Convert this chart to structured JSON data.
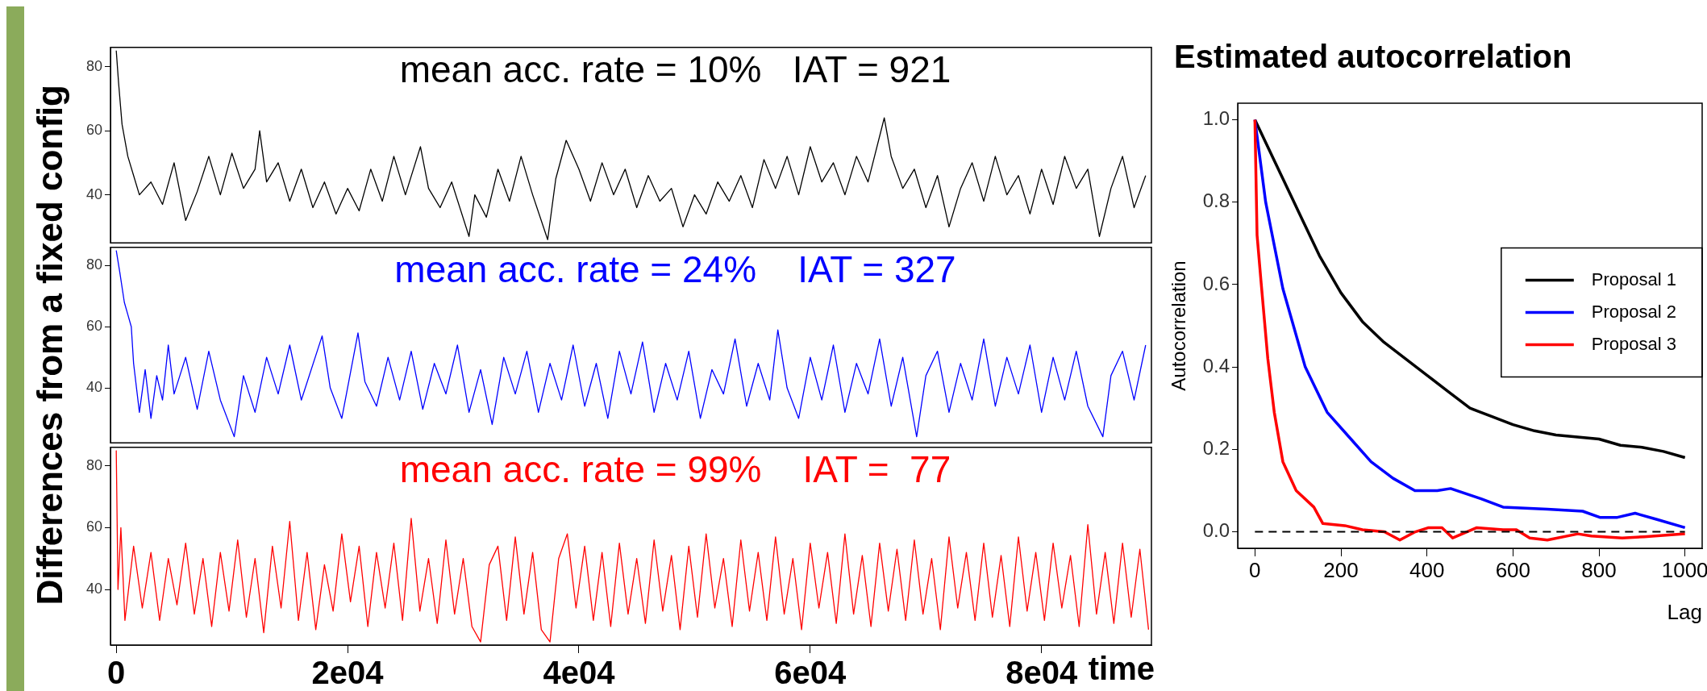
{
  "chart_data": [
    {
      "type": "line",
      "annotations": [
        "mean acc. rate = 10%   IAT = 921"
      ],
      "xlim": [
        -500,
        89500
      ],
      "ylim": [
        25,
        86
      ],
      "yticks": [
        40,
        60,
        80
      ],
      "tick_labels": "y",
      "grid": false,
      "marker": "none",
      "series": [
        {
          "color": "#000000",
          "x": [
            0,
            200,
            500,
            1000,
            1500,
            2000,
            3000,
            4000,
            5000,
            6000,
            7000,
            8000,
            9000,
            10000,
            11000,
            12000,
            12400,
            13000,
            14000,
            15000,
            16000,
            17000,
            18000,
            19000,
            20000,
            21000,
            22000,
            23000,
            24000,
            25000,
            26300,
            27000,
            28000,
            29000,
            30500,
            31000,
            32000,
            33000,
            34000,
            35000,
            36000,
            37300,
            38000,
            38900,
            40000,
            41000,
            42000,
            43000,
            44000,
            45000,
            46000,
            47000,
            48000,
            49000,
            50000,
            51000,
            52000,
            53000,
            54000,
            55000,
            56000,
            57000,
            58000,
            59000,
            60000,
            61000,
            62000,
            63000,
            64000,
            65000,
            66400,
            67000,
            68000,
            69000,
            70000,
            71000,
            72000,
            73000,
            74000,
            75000,
            76000,
            77000,
            78000,
            79000,
            80000,
            81000,
            82000,
            83000,
            84000,
            85000,
            86000,
            87000,
            88000,
            89000
          ],
          "values": [
            85,
            75,
            62,
            52,
            46,
            40,
            44,
            37,
            50,
            32,
            41,
            52,
            40,
            53,
            42,
            48,
            60,
            44,
            50,
            38,
            48,
            36,
            44,
            34,
            42,
            35,
            48,
            38,
            52,
            40,
            55,
            42,
            36,
            44,
            27,
            40,
            33,
            48,
            38,
            52,
            40,
            26,
            45,
            57,
            48,
            38,
            50,
            40,
            48,
            36,
            46,
            38,
            42,
            30,
            40,
            34,
            44,
            38,
            46,
            36,
            51,
            42,
            52,
            40,
            55,
            44,
            50,
            40,
            52,
            44,
            64,
            52,
            42,
            48,
            36,
            46,
            30,
            42,
            50,
            38,
            52,
            40,
            46,
            34,
            48,
            37,
            52,
            42,
            48,
            27,
            42,
            52,
            36,
            46
          ]
        }
      ]
    },
    {
      "type": "line",
      "ylabel": "Differences from a fixed config",
      "annotations": [
        "mean acc. rate = 24%    IAT = 327"
      ],
      "xlim": [
        -500,
        89500
      ],
      "ylim": [
        22,
        86
      ],
      "yticks": [
        40,
        60,
        80
      ],
      "tick_labels": "y",
      "grid": false,
      "marker": "none",
      "series": [
        {
          "color": "#0000ff",
          "x": [
            0,
            300,
            700,
            1000,
            1300,
            1500,
            2000,
            2500,
            3000,
            3500,
            4000,
            4500,
            5000,
            6000,
            7000,
            8000,
            9000,
            10200,
            11000,
            12000,
            13000,
            14000,
            15000,
            16000,
            17800,
            18500,
            19500,
            20900,
            21500,
            22500,
            23500,
            24500,
            25500,
            26500,
            27500,
            28500,
            29500,
            30500,
            31500,
            32500,
            33500,
            34500,
            35500,
            36500,
            37500,
            38500,
            39500,
            40500,
            41500,
            42500,
            43500,
            44500,
            45500,
            46500,
            47500,
            48500,
            49500,
            50500,
            51500,
            52500,
            53500,
            54500,
            55500,
            56500,
            57200,
            58000,
            59000,
            60000,
            61000,
            62000,
            63000,
            64000,
            65000,
            66000,
            67000,
            68000,
            69200,
            70000,
            71000,
            72000,
            73000,
            74000,
            75000,
            76000,
            77000,
            78000,
            79000,
            80000,
            81000,
            82000,
            83000,
            84000,
            85300,
            86000,
            87000,
            88000,
            89000
          ],
          "values": [
            85,
            78,
            68,
            64,
            60,
            48,
            32,
            46,
            30,
            44,
            36,
            54,
            38,
            50,
            33,
            52,
            36,
            24,
            44,
            32,
            50,
            38,
            54,
            36,
            57,
            40,
            30,
            58,
            42,
            34,
            50,
            36,
            52,
            33,
            48,
            38,
            54,
            32,
            46,
            28,
            50,
            38,
            52,
            32,
            48,
            36,
            54,
            34,
            48,
            30,
            52,
            38,
            55,
            32,
            48,
            36,
            52,
            30,
            46,
            38,
            56,
            34,
            48,
            36,
            59,
            40,
            30,
            50,
            36,
            54,
            32,
            48,
            38,
            56,
            34,
            50,
            24,
            44,
            52,
            32,
            48,
            36,
            56,
            34,
            50,
            38,
            54,
            32,
            50,
            36,
            52,
            34,
            24,
            44,
            52,
            36,
            54
          ]
        }
      ]
    },
    {
      "type": "line",
      "xlabel": "time",
      "annotations": [
        "mean acc. rate = 99%    IAT =  77"
      ],
      "xlim": [
        -500,
        89500
      ],
      "ylim": [
        22,
        86
      ],
      "xticks": [
        0,
        {
          "value": 20000,
          "label": "2e04"
        },
        {
          "value": 40000,
          "label": "4e04"
        },
        {
          "value": 60000,
          "label": "6e04"
        },
        {
          "value": 80000,
          "label": "8e04"
        }
      ],
      "yticks": [
        40,
        60,
        80
      ],
      "grid": false,
      "marker": "none",
      "series": [
        {
          "color": "#ff0000",
          "x": [
            0,
            150,
            400,
            750,
            1500,
            2250,
            3000,
            3750,
            4500,
            5250,
            6000,
            6750,
            7500,
            8250,
            9000,
            9750,
            10500,
            11250,
            12000,
            12750,
            13500,
            14250,
            15000,
            15750,
            16500,
            17250,
            18000,
            18750,
            19500,
            20250,
            21000,
            21750,
            22500,
            23250,
            24000,
            24750,
            25500,
            26250,
            27000,
            27750,
            28500,
            29250,
            30000,
            30750,
            31500,
            32250,
            33000,
            33750,
            34500,
            35250,
            36000,
            36750,
            37500,
            38250,
            39000,
            39750,
            40500,
            41250,
            42000,
            42750,
            43500,
            44250,
            45000,
            45750,
            46500,
            47250,
            48000,
            48750,
            49500,
            50250,
            51000,
            51750,
            52500,
            53250,
            54000,
            54750,
            55500,
            56250,
            57000,
            57750,
            58500,
            59250,
            60000,
            60750,
            61500,
            62250,
            63000,
            63750,
            64500,
            65250,
            66000,
            66750,
            67500,
            68250,
            69000,
            69750,
            70500,
            71250,
            72000,
            72750,
            73500,
            74250,
            75000,
            75750,
            76500,
            77250,
            78000,
            78750,
            79500,
            80250,
            81000,
            81750,
            82500,
            83250,
            84000,
            84750,
            85500,
            86250,
            87000,
            87750,
            88500,
            89250
          ],
          "values": [
            85,
            40,
            60,
            30,
            54,
            34,
            52,
            30,
            50,
            35,
            55,
            32,
            50,
            28,
            52,
            33,
            56,
            31,
            50,
            26,
            54,
            34,
            62,
            30,
            52,
            27,
            48,
            33,
            58,
            36,
            54,
            28,
            52,
            34,
            55,
            30,
            63,
            33,
            50,
            29,
            56,
            32,
            50,
            28,
            23,
            48,
            54,
            30,
            57,
            32,
            52,
            27,
            23,
            50,
            58,
            34,
            54,
            30,
            52,
            28,
            55,
            32,
            50,
            29,
            56,
            33,
            51,
            27,
            54,
            31,
            58,
            34,
            50,
            28,
            56,
            33,
            52,
            30,
            57,
            32,
            50,
            27,
            55,
            34,
            52,
            29,
            58,
            32,
            51,
            28,
            55,
            33,
            53,
            30,
            56,
            32,
            50,
            27,
            57,
            34,
            52,
            30,
            55,
            31,
            51,
            28,
            57,
            33,
            52,
            30,
            55,
            34,
            51,
            28,
            61,
            32,
            52,
            29,
            55,
            31,
            53,
            27
          ]
        }
      ]
    },
    {
      "type": "line",
      "title": "Estimated autocorrelation",
      "xlabel": "Lag",
      "ylabel": "Autocorrelation",
      "xlim": [
        -40,
        1040
      ],
      "ylim": [
        -0.04,
        1.04
      ],
      "xticks": [
        0,
        200,
        400,
        600,
        800,
        1000
      ],
      "yticks": [
        {
          "value": 0,
          "label": "0.0"
        },
        0.2,
        0.4,
        0.6,
        0.8,
        {
          "value": 1,
          "label": "1.0"
        }
      ],
      "grid": false,
      "marker": "none",
      "legend": "right",
      "ref_lines": [
        {
          "axis": "y",
          "value": 0,
          "color": "#000000",
          "line_style": "dashed"
        }
      ],
      "series": [
        {
          "name": "Proposal 1",
          "color": "#000000",
          "x": [
            0,
            50,
            100,
            150,
            200,
            250,
            300,
            350,
            400,
            450,
            500,
            550,
            600,
            650,
            700,
            750,
            800,
            850,
            900,
            950,
            1000
          ],
          "values": [
            1,
            0.89,
            0.78,
            0.67,
            0.58,
            0.51,
            0.46,
            0.42,
            0.38,
            0.34,
            0.3,
            0.28,
            0.26,
            0.245,
            0.235,
            0.23,
            0.225,
            0.21,
            0.205,
            0.195,
            0.18
          ]
        },
        {
          "name": "Proposal 2",
          "color": "#0000ff",
          "x": [
            0,
            25,
            65,
            117,
            168,
            219,
            270,
            321,
            372,
            424,
            455,
            526,
            577,
            680,
            762,
            802,
            843,
            884,
            935,
            1000
          ],
          "values": [
            1,
            0.8,
            0.59,
            0.4,
            0.29,
            0.23,
            0.17,
            0.13,
            0.1,
            0.1,
            0.105,
            0.08,
            0.06,
            0.055,
            0.05,
            0.035,
            0.035,
            0.045,
            0.03,
            0.01
          ]
        },
        {
          "name": "Proposal 3",
          "color": "#ff0000",
          "x": [
            0,
            5,
            14,
            30,
            45,
            65,
            96,
            137,
            158,
            209,
            250,
            301,
            337,
            373,
            404,
            435,
            460,
            516,
            577,
            608,
            639,
            680,
            751,
            782,
            854,
            905,
            1000
          ],
          "values": [
            1,
            0.72,
            0.61,
            0.42,
            0.29,
            0.17,
            0.1,
            0.06,
            0.02,
            0.015,
            0.005,
            0,
            -0.02,
            0,
            0.01,
            0.01,
            -0.015,
            0.01,
            0.005,
            0.005,
            -0.015,
            -0.02,
            -0.005,
            -0.01,
            -0.015,
            -0.012,
            -0.005
          ]
        }
      ]
    }
  ]
}
